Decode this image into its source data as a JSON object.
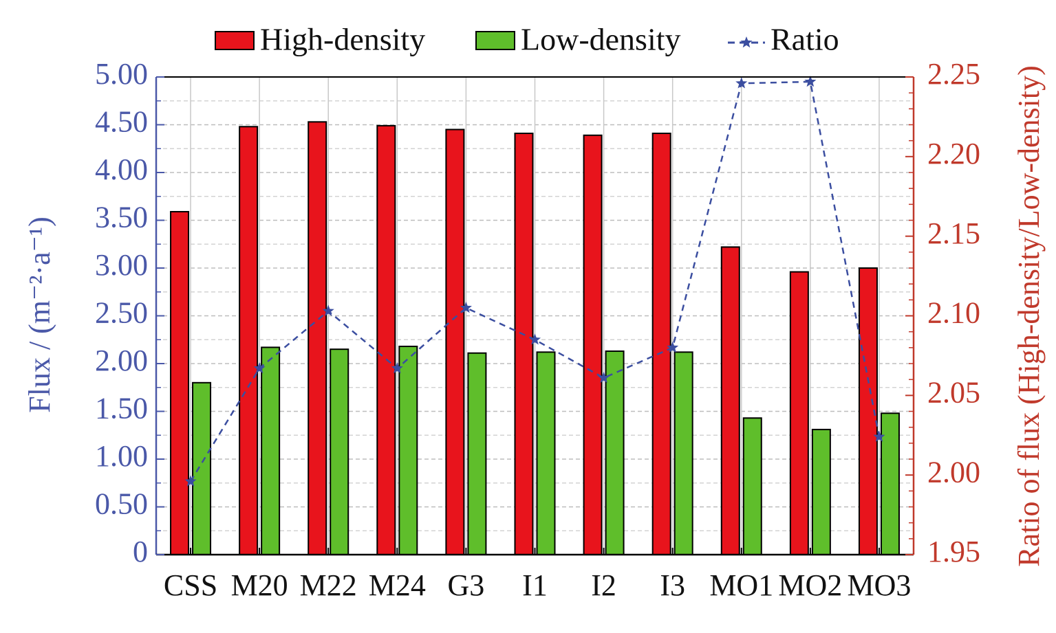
{
  "chart_data": {
    "type": "bar",
    "categories": [
      "CSS",
      "M20",
      "M22",
      "M24",
      "G3",
      "I1",
      "I2",
      "I3",
      "MO1",
      "MO2",
      "MO3"
    ],
    "series": [
      {
        "name": "High-density",
        "axis": "left",
        "kind": "bar",
        "color": "#e8141c",
        "values": [
          3.59,
          4.48,
          4.53,
          4.49,
          4.45,
          4.41,
          4.39,
          4.41,
          3.22,
          2.96,
          3.0
        ]
      },
      {
        "name": "Low-density",
        "axis": "left",
        "kind": "bar",
        "color": "#5fbe2b",
        "values": [
          1.8,
          2.17,
          2.15,
          2.18,
          2.11,
          2.12,
          2.13,
          2.12,
          1.43,
          1.31,
          1.48
        ]
      },
      {
        "name": "Ratio",
        "axis": "right",
        "kind": "line",
        "style": "dashed",
        "marker": "star",
        "color": "#3b4ea0",
        "values": [
          1.996,
          2.067,
          2.103,
          2.067,
          2.105,
          2.085,
          2.061,
          2.08,
          2.246,
          2.247,
          2.024
        ]
      }
    ],
    "xlabel": "",
    "ylabel": "Flux / (m⁻²·a⁻¹)",
    "ylabel2": "Ratio of flux (High-density/Low-density)",
    "ylim": [
      0,
      5
    ],
    "ylim2": [
      1.95,
      2.25
    ],
    "yticks": [
      "0",
      "0.50",
      "1.00",
      "1.50",
      "2.00",
      "2.50",
      "3.00",
      "3.50",
      "4.00",
      "4.50",
      "5.00"
    ],
    "yticks2": [
      "1.95",
      "2.00",
      "2.05",
      "2.10",
      "2.15",
      "2.20",
      "2.25"
    ],
    "grid": true,
    "legend": "top",
    "colors": {
      "left_axis": "#4a58a8",
      "right_axis": "#c0392b"
    }
  }
}
